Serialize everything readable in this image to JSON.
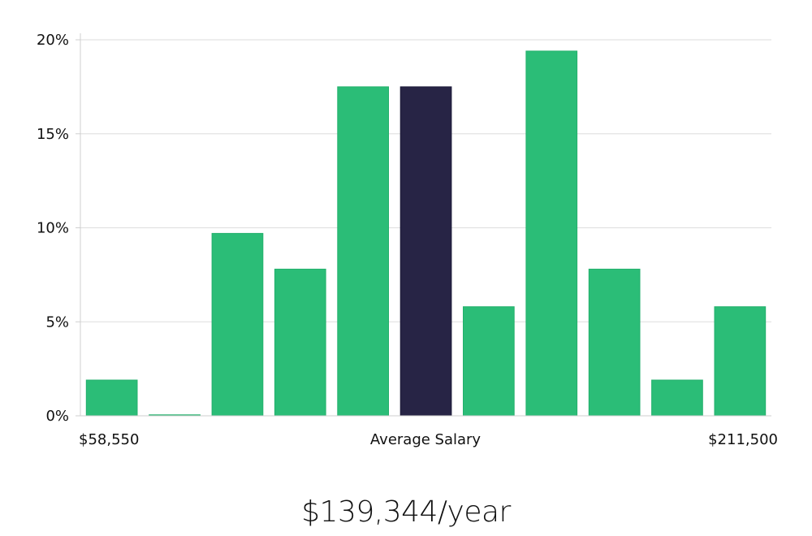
{
  "chart_data": {
    "type": "bar",
    "categories": [
      "bin-1",
      "bin-2",
      "bin-3",
      "bin-4",
      "bin-5",
      "bin-6",
      "bin-7",
      "bin-8",
      "bin-9",
      "bin-10",
      "bin-11"
    ],
    "values": [
      1.9,
      0.05,
      9.7,
      7.8,
      17.5,
      17.5,
      5.8,
      19.4,
      7.8,
      1.9,
      5.8
    ],
    "highlight_index": 5,
    "ylim": [
      0,
      20
    ],
    "y_ticks": [
      "0%",
      "5%",
      "10%",
      "15%",
      "20%"
    ],
    "x_min_label": "$58,550",
    "x_center_label": "Average Salary",
    "x_max_label": "$211,500",
    "grid": true,
    "bar_color": "#2bbd77",
    "highlight_color": "#272445"
  },
  "summary": {
    "salary_text": "$139,344/year"
  }
}
